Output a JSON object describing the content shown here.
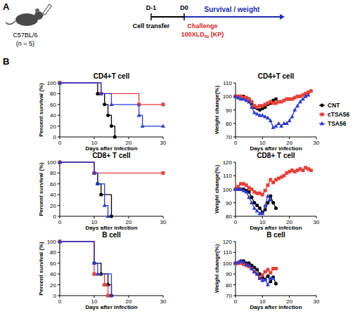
{
  "diagram": {
    "panel_labels": [
      "A",
      "B"
    ],
    "mouse_label": "C57BL/6",
    "n_label": "(n = 5)",
    "timeline": {
      "day_labels": [
        "D-1",
        "D0"
      ],
      "event_labels": [
        "Cell transfer",
        "Challenge"
      ],
      "dose": [
        "100XLD",
        "50",
        " (KP)"
      ],
      "readout": "Survival / weight"
    }
  },
  "chart_data": [
    {
      "type": "line",
      "title": "CD4+T cell",
      "x_label": "Days after infection",
      "y_label": "Percent survival (%)",
      "xlim": [
        0,
        30
      ],
      "xticks": [
        0,
        10,
        20,
        30
      ],
      "ylim": [
        0,
        100
      ],
      "yticks": [
        0,
        20,
        40,
        60,
        80,
        100
      ],
      "line_style": "step",
      "series": [
        {
          "color": "#000000",
          "marker": "circle",
          "x": [
            0,
            11,
            13,
            14,
            15,
            16
          ],
          "values": [
            100,
            80,
            60,
            40,
            20,
            0
          ]
        },
        {
          "color": "#e8403a",
          "marker": "square",
          "x": [
            0,
            12,
            23,
            30
          ],
          "values": [
            100,
            80,
            60,
            60
          ]
        },
        {
          "color": "#2b3bd6",
          "marker": "triangle",
          "x": [
            0,
            12,
            15,
            23,
            24,
            30
          ],
          "values": [
            100,
            80,
            60,
            40,
            20,
            20
          ]
        }
      ]
    },
    {
      "type": "line",
      "title": "CD4+T cell",
      "x_label": "Days after infection",
      "y_label": "Weight change(%)",
      "xlim": [
        0,
        30
      ],
      "xticks": [
        0,
        10,
        20,
        30
      ],
      "ylim": [
        70,
        110
      ],
      "yticks": [
        70,
        80,
        90,
        100,
        110
      ],
      "line_style": "solid",
      "legend": "right",
      "series": [
        {
          "name": "CNT",
          "color": "#000000",
          "marker": "circle",
          "x": [
            0,
            1,
            2,
            3,
            4,
            5,
            6,
            7,
            8,
            9,
            10,
            11,
            12,
            13,
            14,
            15
          ],
          "values": [
            100,
            100,
            100,
            100,
            99,
            98,
            95,
            92,
            91,
            90,
            91,
            92,
            94,
            95,
            97,
            98
          ]
        },
        {
          "name": "cTSA56",
          "color": "#e8403a",
          "marker": "square",
          "x": [
            0,
            1,
            2,
            3,
            4,
            5,
            6,
            7,
            8,
            9,
            10,
            11,
            12,
            13,
            14,
            15,
            16,
            17,
            18,
            19,
            20,
            21,
            22,
            23,
            24,
            25,
            26,
            27,
            28
          ],
          "values": [
            100,
            100,
            100,
            99,
            99,
            98,
            96,
            93,
            92,
            93,
            93,
            94,
            95,
            96,
            95,
            95,
            96,
            96,
            97,
            98,
            98,
            98,
            99,
            100,
            100,
            101,
            102,
            103,
            104
          ]
        },
        {
          "name": "TSA56",
          "color": "#2b3bd6",
          "marker": "triangle",
          "x": [
            0,
            1,
            2,
            3,
            4,
            5,
            6,
            7,
            8,
            9,
            10,
            11,
            12,
            13,
            14,
            15,
            16,
            17,
            18,
            19,
            20,
            21,
            22,
            23,
            24,
            25,
            26,
            27
          ],
          "values": [
            100,
            99,
            98,
            98,
            97,
            96,
            92,
            88,
            87,
            86,
            86,
            85,
            84,
            82,
            77,
            78,
            80,
            78,
            80,
            80,
            82,
            85,
            90,
            93,
            96,
            98,
            100,
            101
          ]
        }
      ]
    },
    {
      "type": "line",
      "title": "CD8+ T cell",
      "x_label": "Days after infection",
      "y_label": "Percent survival (%)",
      "xlim": [
        0,
        30
      ],
      "xticks": [
        0,
        10,
        20,
        30
      ],
      "ylim": [
        0,
        100
      ],
      "yticks": [
        0,
        20,
        40,
        60,
        80,
        100
      ],
      "line_style": "step",
      "series": [
        {
          "color": "#000000",
          "marker": "circle",
          "x": [
            0,
            10,
            11,
            12,
            15
          ],
          "values": [
            100,
            80,
            60,
            40,
            0
          ]
        },
        {
          "color": "#e8403a",
          "marker": "square",
          "x": [
            0,
            10,
            30
          ],
          "values": [
            100,
            80,
            80
          ]
        },
        {
          "color": "#2b3bd6",
          "marker": "triangle",
          "x": [
            0,
            10,
            11,
            13,
            14
          ],
          "values": [
            100,
            80,
            60,
            20,
            0
          ]
        }
      ]
    },
    {
      "type": "line",
      "title": "CD8+ T cell",
      "x_label": "Days after infection",
      "y_label": "Weight change(%)",
      "xlim": [
        0,
        30
      ],
      "xticks": [
        0,
        10,
        20,
        30
      ],
      "ylim": [
        80,
        120
      ],
      "yticks": [
        80,
        90,
        100,
        110,
        120
      ],
      "line_style": "solid",
      "series": [
        {
          "color": "#000000",
          "marker": "circle",
          "x": [
            0,
            1,
            2,
            3,
            4,
            5,
            6,
            7,
            8,
            9,
            10,
            11,
            12,
            13,
            14,
            15
          ],
          "values": [
            100,
            100,
            100,
            100,
            99,
            98,
            94,
            90,
            88,
            86,
            83,
            85,
            90,
            95,
            90,
            86
          ]
        },
        {
          "color": "#e8403a",
          "marker": "square",
          "x": [
            0,
            1,
            2,
            3,
            4,
            5,
            6,
            7,
            8,
            9,
            10,
            11,
            12,
            13,
            14,
            15,
            16,
            17,
            18,
            19,
            20,
            21,
            22,
            23,
            24,
            25,
            26,
            27,
            28
          ],
          "values": [
            100,
            102,
            104,
            104,
            103,
            101,
            100,
            98,
            97,
            97,
            96,
            99,
            103,
            107,
            105,
            107,
            108,
            109,
            110,
            112,
            113,
            114,
            113,
            114,
            115,
            114,
            116,
            115,
            114
          ]
        },
        {
          "color": "#2b3bd6",
          "marker": "triangle",
          "x": [
            0,
            1,
            2,
            3,
            4,
            5,
            6,
            7,
            8,
            9,
            10,
            11,
            12,
            13
          ],
          "values": [
            100,
            100,
            100,
            99,
            98,
            94,
            90,
            86,
            84,
            82,
            82,
            88,
            95,
            92
          ]
        }
      ]
    },
    {
      "type": "line",
      "title": "B cell",
      "x_label": "Days after infection",
      "y_label": "Percent survival (%)",
      "xlim": [
        0,
        30
      ],
      "xticks": [
        0,
        10,
        20,
        30
      ],
      "ylim": [
        0,
        100
      ],
      "yticks": [
        0,
        20,
        40,
        60,
        80,
        100
      ],
      "line_style": "step",
      "series": [
        {
          "color": "#000000",
          "marker": "circle",
          "x": [
            0,
            10,
            12,
            14,
            15
          ],
          "values": [
            100,
            60,
            40,
            20,
            0
          ]
        },
        {
          "color": "#e8403a",
          "marker": "square",
          "x": [
            0,
            10,
            13,
            14
          ],
          "values": [
            100,
            40,
            20,
            0
          ]
        },
        {
          "color": "#2b3bd6",
          "marker": "triangle",
          "x": [
            0,
            10,
            11,
            15
          ],
          "values": [
            100,
            60,
            40,
            0
          ]
        }
      ]
    },
    {
      "type": "line",
      "title": "B cell",
      "x_label": "Days after infection",
      "y_label": "Weight change(%)",
      "xlim": [
        0,
        30
      ],
      "xticks": [
        0,
        10,
        20,
        30
      ],
      "ylim": [
        70,
        120
      ],
      "yticks": [
        70,
        80,
        90,
        100,
        110,
        120
      ],
      "line_style": "solid",
      "series": [
        {
          "color": "#000000",
          "marker": "circle",
          "x": [
            0,
            1,
            2,
            3,
            4,
            5,
            6,
            7,
            8,
            9,
            10,
            11,
            12,
            13,
            14,
            15
          ],
          "values": [
            100,
            100,
            102,
            102,
            100,
            100,
            98,
            96,
            94,
            90,
            87,
            85,
            88,
            83,
            87,
            81
          ]
        },
        {
          "color": "#e8403a",
          "marker": "square",
          "x": [
            0,
            1,
            2,
            3,
            4,
            5,
            6,
            7,
            8,
            9,
            10,
            11,
            12,
            13,
            14,
            15
          ],
          "values": [
            100,
            100,
            100,
            99,
            98,
            97,
            95,
            92,
            90,
            86,
            89,
            92,
            94,
            91,
            95,
            95
          ]
        },
        {
          "color": "#2b3bd6",
          "marker": "triangle",
          "x": [
            0,
            1,
            2,
            3,
            4,
            5,
            6,
            7,
            8,
            9,
            10,
            11,
            12,
            13,
            14
          ],
          "values": [
            100,
            101,
            102,
            101,
            99,
            98,
            95,
            92,
            90,
            86,
            84,
            85,
            80,
            86,
            86
          ]
        }
      ]
    }
  ]
}
